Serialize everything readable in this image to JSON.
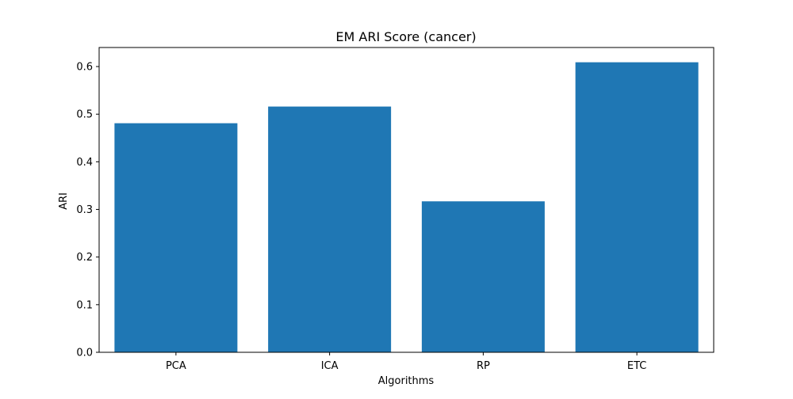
{
  "chart_data": {
    "type": "bar",
    "title": "EM ARI Score (cancer)",
    "xlabel": "Algorithms",
    "ylabel": "ARI",
    "categories": [
      "PCA",
      "ICA",
      "RP",
      "ETC"
    ],
    "values": [
      0.481,
      0.516,
      0.317,
      0.609
    ],
    "ylim": [
      0,
      0.64
    ],
    "yticks": [
      0.0,
      0.1,
      0.2,
      0.3,
      0.4,
      0.5,
      0.6
    ],
    "ytick_labels": [
      "0.0",
      "0.1",
      "0.2",
      "0.3",
      "0.4",
      "0.5",
      "0.6"
    ],
    "grid": false,
    "bar_color": "#1f77b4"
  }
}
